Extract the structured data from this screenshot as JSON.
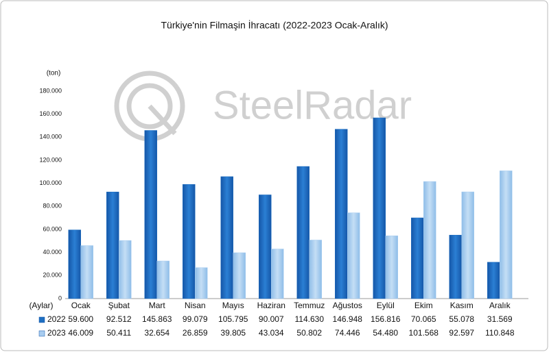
{
  "chart_data": {
    "type": "bar",
    "title": "Türkiye'nin Filmaşin İhracatı (2022-2023 Ocak-Aralık)",
    "y_label": "(ton)",
    "x_label": "(Aylar)",
    "watermark": "SteelRadar",
    "categories": [
      "Ocak",
      "Şubat",
      "Mart",
      "Nisan",
      "Mayıs",
      "Haziran",
      "Temmuz",
      "Ağustos",
      "Eylül",
      "Ekim",
      "Kasım",
      "Aralık"
    ],
    "series": [
      {
        "name": "2022",
        "color": "#1f6fc1",
        "values": [
          59600,
          92512,
          145863,
          99079,
          105795,
          90007,
          114630,
          146948,
          156816,
          70065,
          55078,
          31569
        ],
        "value_labels": [
          "59.600",
          "92.512",
          "145.863",
          "99.079",
          "105.795",
          "90.007",
          "114.630",
          "146.948",
          "156.816",
          "70.065",
          "55.078",
          "31.569"
        ]
      },
      {
        "name": "2023",
        "color": "#a8cdf0",
        "values": [
          46009,
          50411,
          32654,
          26859,
          39805,
          43034,
          50802,
          74446,
          54480,
          101568,
          92597,
          110848
        ],
        "value_labels": [
          "46.009",
          "50.411",
          "32.654",
          "26.859",
          "39.805",
          "43.034",
          "50.802",
          "74.446",
          "54.480",
          "101.568",
          "92.597",
          "110.848"
        ]
      }
    ],
    "ylim": [
      0,
      180000
    ],
    "yticks": [
      0,
      {
        "value": 20000,
        "label": "20.000"
      },
      {
        "value": 40000,
        "label": "40.000"
      },
      {
        "value": 60000,
        "label": "60.000"
      },
      {
        "value": 80000,
        "label": "80.000"
      },
      {
        "value": 100000,
        "label": "100.000"
      },
      {
        "value": 120000,
        "label": "120.000"
      },
      {
        "value": 140000,
        "label": "140.000"
      },
      {
        "value": 160000,
        "label": "160.000"
      },
      {
        "value": 180000,
        "label": "180.000"
      }
    ],
    "grid": false
  }
}
